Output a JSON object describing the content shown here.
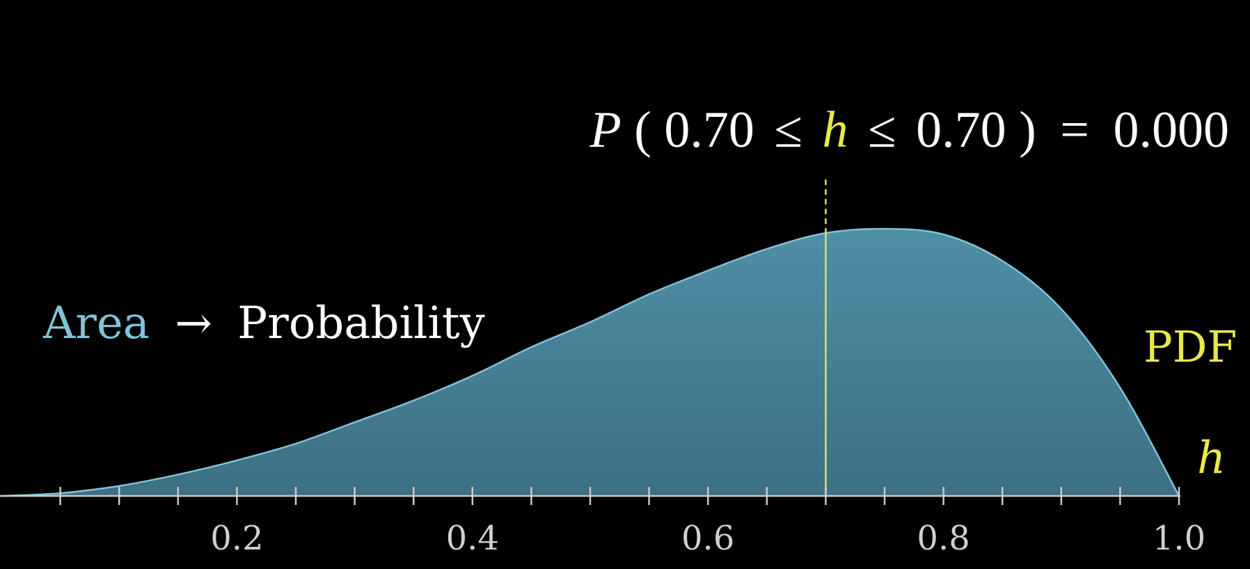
{
  "chart_data": {
    "type": "area",
    "title": "",
    "xlabel": "h",
    "ylabel": "",
    "xlim": [
      0,
      1
    ],
    "ylim": [
      0,
      2.2
    ],
    "grid": false,
    "x_ticks": [
      0.2,
      0.4,
      0.6,
      0.8,
      1.0
    ],
    "x_tick_labels": [
      "0.2",
      "0.4",
      "0.6",
      "0.8",
      "1.0"
    ],
    "minor_tick_step": 0.05,
    "series": [
      {
        "name": "PDF",
        "x": [
          0,
          0.05,
          0.1,
          0.15,
          0.2,
          0.25,
          0.3,
          0.35,
          0.4,
          0.45,
          0.5,
          0.55,
          0.6,
          0.65,
          0.7,
          0.75,
          0.8,
          0.85,
          0.9,
          0.95,
          1.0
        ],
        "y": [
          0,
          0.01,
          0.036,
          0.077,
          0.128,
          0.188,
          0.265,
          0.343,
          0.432,
          0.535,
          0.625,
          0.725,
          0.81,
          0.888,
          0.945,
          0.96,
          0.94,
          0.845,
          0.672,
          0.389,
          0
        ],
        "color": "#83c2d8",
        "fill": "#4a8aa0"
      }
    ],
    "marker": {
      "x": 0.7,
      "color": "#d9e36a"
    },
    "annotations": {
      "series_label": "PDF",
      "axis_variable": "h",
      "area_word": "Area",
      "arrow": "→",
      "probability_word": "Probability",
      "prob_P": "P",
      "prob_open": "(",
      "prob_lower": "0.70",
      "prob_le1": "≤",
      "prob_var": "h",
      "prob_le2": "≤",
      "prob_upper": "0.70",
      "prob_close": ")",
      "prob_eq": "=",
      "prob_value": "0.000"
    },
    "colors": {
      "background": "#000000",
      "curve": "#83c2d8",
      "fill": "#4a8aa0",
      "accent_yellow": "#e8e84a",
      "text": "#ffffff",
      "axis": "#cccccc"
    }
  }
}
